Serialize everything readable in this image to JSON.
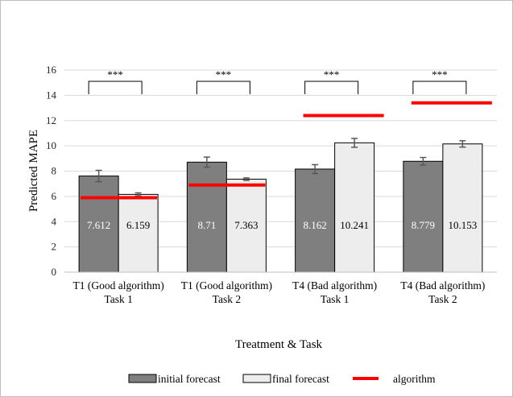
{
  "chart_data": {
    "type": "bar",
    "title": "",
    "xlabel": "Treatment & Task",
    "ylabel": "Predicted MAPE",
    "ylim": [
      0,
      16
    ],
    "yticks": [
      0,
      2,
      4,
      6,
      8,
      10,
      12,
      14,
      16
    ],
    "grid": true,
    "legend_position": "bottom",
    "categories": [
      [
        "T1 (Good algorithm)",
        "Task 1"
      ],
      [
        "T1 (Good algorithm)",
        "Task 2"
      ],
      [
        "T4 (Bad algorithm)",
        "Task 1"
      ],
      [
        "T4 (Bad algorithm)",
        "Task 2"
      ]
    ],
    "series": [
      {
        "name": "initial forecast",
        "color": "#7f7f7f",
        "values": [
          7.612,
          8.71,
          8.162,
          8.779
        ],
        "labels": [
          "7.612",
          "8.71",
          "8.162",
          "8.779"
        ],
        "error": [
          0.45,
          0.4,
          0.35,
          0.3
        ]
      },
      {
        "name": "final forecast",
        "color": "#ededed",
        "values": [
          6.159,
          7.363,
          10.241,
          10.153
        ],
        "labels": [
          "6.159",
          "7.363",
          "10.241",
          "10.153"
        ],
        "error": [
          0.12,
          0.1,
          0.35,
          0.25
        ]
      }
    ],
    "algorithm": {
      "name": "algorithm",
      "color": "#ff0000",
      "values": [
        5.9,
        6.9,
        12.4,
        13.4
      ]
    },
    "significance": [
      "***",
      "***",
      "***",
      "***"
    ]
  }
}
